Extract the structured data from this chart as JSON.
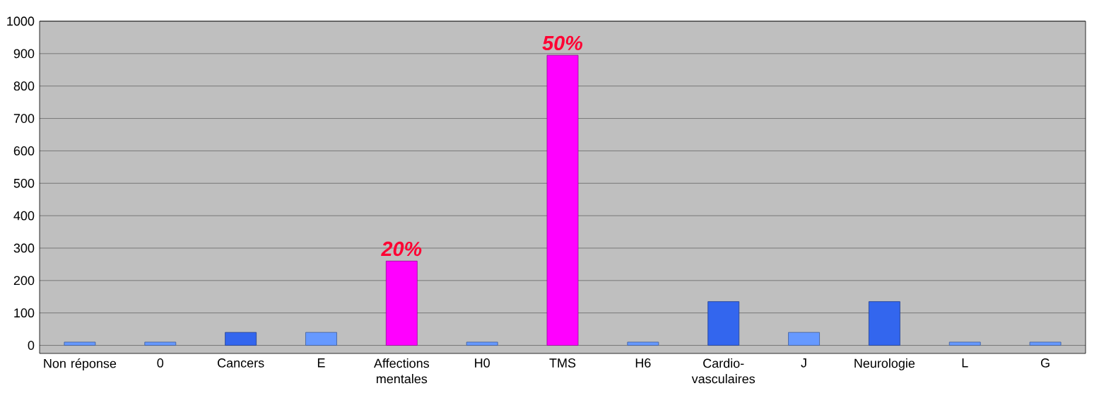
{
  "chart_data": {
    "type": "bar",
    "categories": [
      "Non réponse",
      "0",
      "Cancers",
      "E",
      "Affections mentales",
      "H0",
      "TMS",
      "H6",
      "Cardio-vasculaires",
      "J",
      "Neurologie",
      "L",
      "G"
    ],
    "values": [
      10,
      10,
      40,
      40,
      260,
      10,
      895,
      10,
      135,
      40,
      135,
      10,
      10
    ],
    "colors": [
      "#6699ff",
      "#6699ff",
      "#3366ee",
      "#6699ff",
      "#ff00ff",
      "#6699ff",
      "#ff00ff",
      "#6699ff",
      "#3366ee",
      "#6699ff",
      "#3366ee",
      "#6699ff",
      "#6699ff"
    ],
    "ylim": [
      -25,
      1000
    ],
    "yticks": [
      0,
      100,
      200,
      300,
      400,
      500,
      600,
      700,
      800,
      900,
      1000
    ],
    "grid": "y",
    "annotations": [
      {
        "text": "20%",
        "x": "Affections mentales",
        "y": 260
      },
      {
        "text": "50%",
        "x": "TMS",
        "y": 895
      }
    ]
  }
}
